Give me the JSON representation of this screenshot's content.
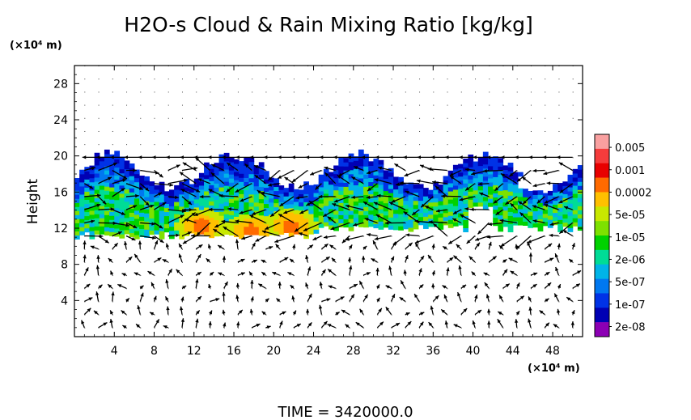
{
  "chart_data": {
    "type": "heatmap",
    "title": "H2O-s Cloud & Rain Mixing Ratio [kg/kg]",
    "ylabel": "Height",
    "y_unit": "(×10⁴ m)",
    "x_unit": "(×10⁴ m)",
    "footer": "TIME = 3420000.0",
    "xlim": [
      0,
      51
    ],
    "ylim": [
      0,
      30
    ],
    "x_ticks": [
      "4",
      "8",
      "12",
      "16",
      "20",
      "24",
      "28",
      "32",
      "36",
      "40",
      "44",
      "48"
    ],
    "x_tick_values": [
      4,
      8,
      12,
      16,
      20,
      24,
      28,
      32,
      36,
      40,
      44,
      48
    ],
    "y_ticks": [
      "4",
      "8",
      "12",
      "16",
      "20",
      "24",
      "28"
    ],
    "y_tick_values": [
      4,
      8,
      12,
      16,
      20,
      24,
      28
    ],
    "grid": true,
    "colorbar": {
      "labels": [
        "0.005",
        "0.001",
        "0.0002",
        "5e-05",
        "1e-05",
        "2e-06",
        "5e-07",
        "1e-07",
        "2e-08"
      ],
      "colors": [
        "#f9a0a0",
        "#f53c3c",
        "#e80000",
        "#ff6a00",
        "#ffc000",
        "#c8e800",
        "#7ee100",
        "#00d200",
        "#00dc96",
        "#00b4e8",
        "#0078f0",
        "#0032e6",
        "#0000b4",
        "#8c00b4"
      ]
    },
    "cloud_layer": {
      "x_range": [
        0,
        51
      ],
      "base_height": 11,
      "top_height": 19.5,
      "peak_values": [
        {
          "x": 12.5,
          "y": 12,
          "level": "0.0002"
        },
        {
          "x": 17.5,
          "y": 11.5,
          "level": "0.0002"
        },
        {
          "x": 21.5,
          "y": 12,
          "level": "0.0002"
        }
      ]
    }
  }
}
